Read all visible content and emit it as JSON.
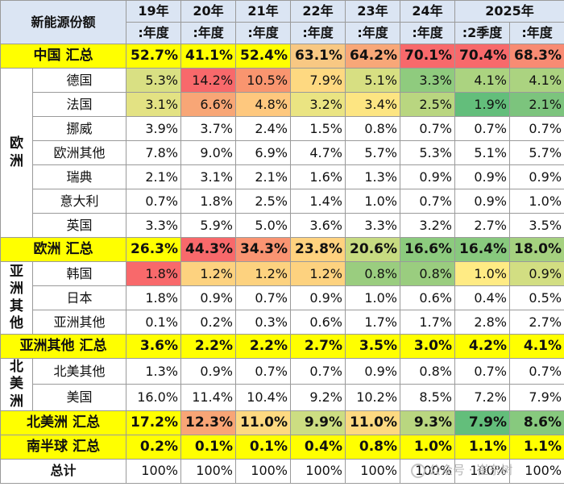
{
  "title": "新能源份额",
  "years": [
    "19年",
    "20年",
    "21年",
    "22年",
    "23年",
    "24年",
    "2025年"
  ],
  "periods": [
    ":年度",
    ":年度",
    ":年度",
    ":年度",
    ":年度",
    ":年度",
    ":2季度",
    ":年度"
  ],
  "rows": [
    {
      "type": "total",
      "label": "中国 汇总",
      "values": [
        "52.7%",
        "41.1%",
        "52.4%",
        "63.1%",
        "64.2%",
        "70.1%",
        "70.4%",
        "68.3%"
      ],
      "colors": [
        "#ffff00",
        "#ffff00",
        "#ffff00",
        "#f8c883",
        "#f8a778",
        "#f8696b",
        "#f8696b",
        "#f88b73"
      ]
    },
    {
      "type": "item",
      "region": "欧洲",
      "regionSpan": 7,
      "label": "德国",
      "values": [
        "5.3%",
        "14.2%",
        "10.5%",
        "7.9%",
        "5.1%",
        "3.3%",
        "4.1%",
        "4.1%"
      ],
      "colors": [
        "#d9e083",
        "#f8696b",
        "#f9956f",
        "#fed981",
        "#d7df82",
        "#8fcb7e",
        "#abd380",
        "#abd380"
      ]
    },
    {
      "type": "item",
      "label": "法国",
      "values": [
        "3.1%",
        "6.6%",
        "4.8%",
        "3.2%",
        "3.4%",
        "2.5%",
        "1.9%",
        "2.1%"
      ],
      "colors": [
        "#e3e283",
        "#f8a676",
        "#fec87e",
        "#eae482",
        "#fde582",
        "#b9d680",
        "#63be7b",
        "#7cc47d"
      ]
    },
    {
      "type": "item",
      "label": "挪威",
      "values": [
        "3.9%",
        "3.7%",
        "2.4%",
        "1.5%",
        "0.8%",
        "0.7%",
        "0.7%",
        "0.7%"
      ],
      "colors": []
    },
    {
      "type": "item",
      "label": "欧洲其他",
      "values": [
        "7.8%",
        "9.0%",
        "6.9%",
        "4.7%",
        "5.7%",
        "5.3%",
        "5.1%",
        "5.7%"
      ],
      "colors": []
    },
    {
      "type": "item",
      "label": "瑞典",
      "values": [
        "2.1%",
        "3.1%",
        "2.1%",
        "1.6%",
        "1.3%",
        "0.9%",
        "0.9%",
        "0.9%"
      ],
      "colors": []
    },
    {
      "type": "item",
      "label": "意大利",
      "values": [
        "0.7%",
        "1.8%",
        "2.5%",
        "1.4%",
        "1.0%",
        "0.7%",
        "0.9%",
        "1.0%"
      ],
      "colors": []
    },
    {
      "type": "item",
      "label": "英国",
      "values": [
        "3.3%",
        "5.9%",
        "5.0%",
        "3.6%",
        "3.3%",
        "3.2%",
        "2.7%",
        "3.5%"
      ],
      "colors": []
    },
    {
      "type": "total",
      "label": "欧洲 汇总",
      "values": [
        "26.3%",
        "44.3%",
        "34.3%",
        "23.8%",
        "20.6%",
        "16.6%",
        "16.4%",
        "18.0%"
      ],
      "colors": [
        "#ffff00",
        "#f8696b",
        "#fa9472",
        "#ffd27f",
        "#c7db81",
        "#8ccb7e",
        "#88c97e",
        "#a5d17f"
      ]
    },
    {
      "type": "item",
      "region": "亚洲其他",
      "regionSpan": 3,
      "label": "韩国",
      "values": [
        "1.8%",
        "1.2%",
        "1.2%",
        "1.2%",
        "0.8%",
        "0.8%",
        "1.0%",
        "0.9%"
      ],
      "colors": [
        "#f8696b",
        "#fdd27f",
        "#fdd27f",
        "#fdd27f",
        "#9acd7f",
        "#9acd7f",
        "#ffeb84",
        "#d2de82"
      ]
    },
    {
      "type": "item",
      "label": "日本",
      "values": [
        "1.8%",
        "0.9%",
        "0.7%",
        "0.9%",
        "1.0%",
        "0.6%",
        "0.4%",
        "0.5%"
      ],
      "colors": []
    },
    {
      "type": "item",
      "label": "亚洲其他",
      "values": [
        "0.1%",
        "0.2%",
        "0.3%",
        "0.6%",
        "1.7%",
        "1.7%",
        "2.8%",
        "2.7%"
      ],
      "colors": []
    },
    {
      "type": "total",
      "label": "亚洲其他 汇总",
      "values": [
        "3.6%",
        "2.2%",
        "2.2%",
        "2.7%",
        "3.5%",
        "3.0%",
        "4.2%",
        "4.1%"
      ],
      "colors": [
        "#ffff00",
        "#ffff00",
        "#ffff00",
        "#ffff00",
        "#ffff00",
        "#ffff00",
        "#ffff00",
        "#ffff00"
      ]
    },
    {
      "type": "item",
      "region": "北美洲",
      "regionSpan": 2,
      "label": "北美其他",
      "values": [
        "1.3%",
        "0.9%",
        "0.7%",
        "0.7%",
        "0.9%",
        "0.8%",
        "0.7%",
        "0.7%"
      ],
      "colors": []
    },
    {
      "type": "item",
      "label": "美国",
      "values": [
        "16.0%",
        "11.4%",
        "10.4%",
        "9.2%",
        "10.2%",
        "8.5%",
        "7.2%",
        "7.9%"
      ],
      "colors": []
    },
    {
      "type": "total",
      "label": "北美洲 汇总",
      "values": [
        "17.2%",
        "12.3%",
        "11.0%",
        "9.9%",
        "11.0%",
        "9.3%",
        "7.9%",
        "8.6%"
      ],
      "colors": [
        "#ffff00",
        "#f8a576",
        "#fdd981",
        "#ccdd82",
        "#fdd981",
        "#b9d680",
        "#63be7b",
        "#87c97e"
      ]
    },
    {
      "type": "total",
      "label": "南半球 汇总",
      "values": [
        "0.2%",
        "0.1%",
        "0.1%",
        "0.4%",
        "0.8%",
        "1.0%",
        "1.1%",
        "1.1%"
      ],
      "colors": [
        "#ffff00",
        "#ffff00",
        "#ffff00",
        "#ffff00",
        "#ffff00",
        "#ffff00",
        "#ffff00",
        "#ffff00"
      ]
    },
    {
      "type": "sum",
      "label": "总计",
      "values": [
        "100%",
        "100%",
        "100%",
        "100%",
        "100%",
        "100%",
        "100%",
        "100%"
      ],
      "colors": []
    }
  ],
  "watermark": "公众号 · 崔东树",
  "colors": {
    "header": "#dbe5f3",
    "total": "#ffff00",
    "border": "#9a9a9a"
  }
}
